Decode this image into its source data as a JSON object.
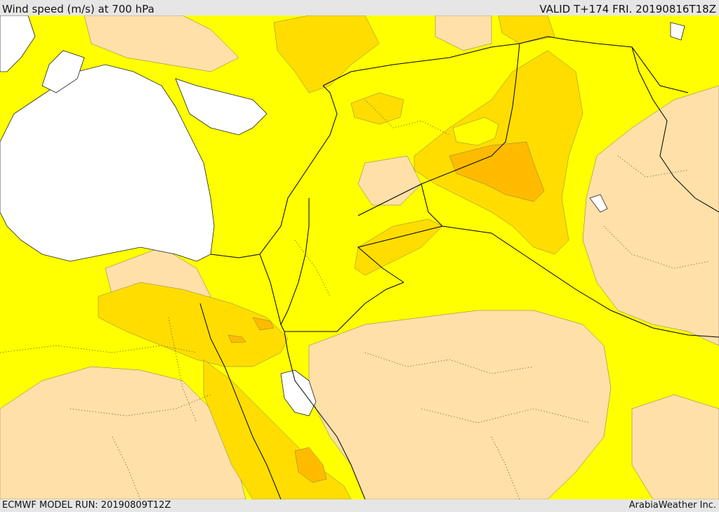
{
  "header": {
    "title": "Wind speed (m/s) at 700 hPa",
    "valid": "VALID T+174 FRI. 20190816T18Z"
  },
  "footer": {
    "model_run": "ECMWF MODEL RUN: 20190809T12Z",
    "credit": "ArabiaWeather Inc."
  },
  "colors": {
    "sea": "#ffffff",
    "low_wind": "#ffe0a8",
    "moderate_wind": "#ffff00",
    "strong_wind": "#ffdd00",
    "very_strong_wind": "#ffbb00",
    "borders": "#000000"
  }
}
